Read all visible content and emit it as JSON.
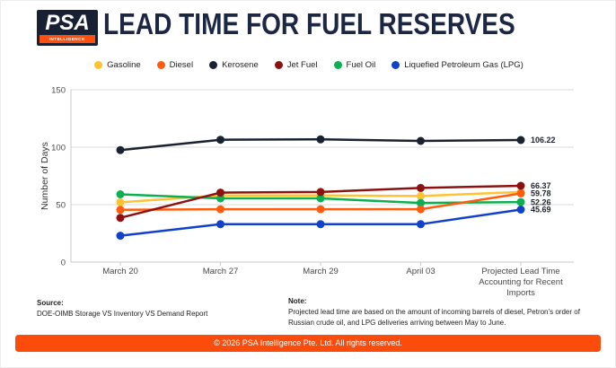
{
  "header": {
    "logo_text": "PSA",
    "logo_subtext": "INTELLIGENCE",
    "title": "LEAD TIME FOR FUEL RESERVES"
  },
  "chart_data": {
    "type": "line",
    "categories": [
      "March 20",
      "March 27",
      "March 29",
      "April 03",
      "Projected Lead Time Accounting for Recent Imports"
    ],
    "series": [
      {
        "name": "Gasoline",
        "color": "#ffc233",
        "values": [
          52,
          58,
          58,
          57.5,
          61
        ],
        "end_label": ""
      },
      {
        "name": "Diesel",
        "color": "#ff5c0d",
        "values": [
          45.5,
          46,
          46,
          46,
          59.78
        ],
        "end_label": "59.78"
      },
      {
        "name": "Kerosene",
        "color": "#1a2232",
        "values": [
          97.5,
          106.5,
          106.8,
          105.5,
          106.22
        ],
        "end_label": "106.22"
      },
      {
        "name": "Jet Fuel",
        "color": "#8c1212",
        "values": [
          38.5,
          60.5,
          61,
          64.5,
          66.37
        ],
        "end_label": "66.37"
      },
      {
        "name": "Fuel Oil",
        "color": "#0eae52",
        "values": [
          59,
          55.5,
          55.5,
          51.5,
          52.26
        ],
        "end_label": "52.26"
      },
      {
        "name": "Liquefied Petroleum Gas (LPG)",
        "color": "#1141c8",
        "values": [
          23,
          33,
          33,
          33,
          45.69
        ],
        "end_label": "45.69"
      }
    ],
    "z_order": [
      0,
      4,
      1,
      3,
      2,
      5
    ],
    "ylabel": "Number of Days",
    "yticks": [
      0,
      50,
      100,
      150
    ],
    "ylim": [
      0,
      150
    ],
    "grid": true,
    "legend_position": "top",
    "colors": {
      "gridline": "#d8d8d8",
      "axis": "#c9c9c9",
      "tick_text": "#4a4a4a",
      "end_label_text": "#1f2330"
    }
  },
  "source": {
    "label": "Source:",
    "text": "DOE-OIMB Storage VS Inventory VS Demand Report"
  },
  "note": {
    "label": "Note:",
    "text": "Projected lead time are based on the amount of incoming barrels of diesel, Petron’s order of Russian crude oil, and LPG deliveries arriving between May to June."
  },
  "footer": {
    "text": "© 2026 PSA Intelligence Pte. Ltd. All rights reserved."
  }
}
